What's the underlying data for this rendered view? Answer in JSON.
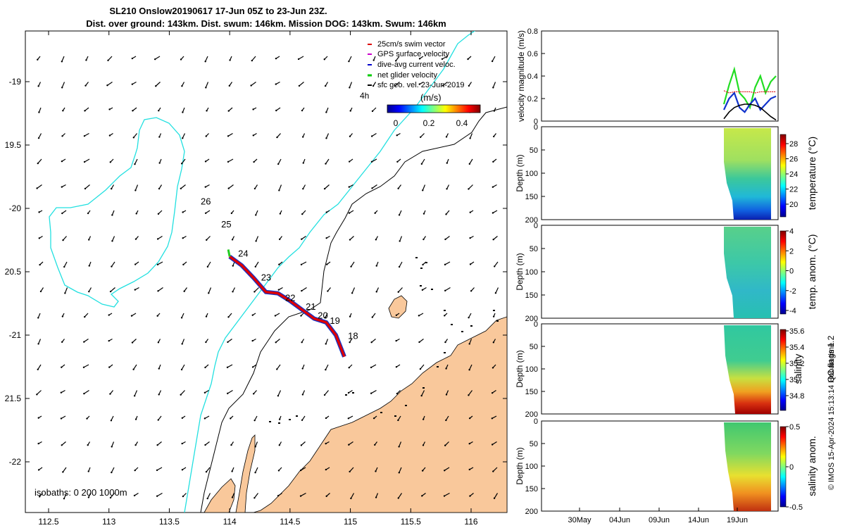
{
  "title": {
    "line1": "SL210 Onslow20190617 17-Jun 05Z to 23-Jun 23Z.",
    "line2": "Dist. over ground: 143km. Dist. swum: 146km. Mission DOG: 143km. Swum: 146km"
  },
  "map": {
    "legend": [
      {
        "label": "25cm/s swim vector",
        "color": "#dd0000"
      },
      {
        "label": "GPS surface velocity",
        "color": "#cc00cc"
      },
      {
        "label": "dive-avg current veloc.",
        "color": "#0000cc"
      },
      {
        "label": "net glider velocity",
        "color": "#00cc00"
      },
      {
        "label": "sfc geo. vel. 23-Jun-2019",
        "color": "#000000"
      }
    ],
    "time_note": "4h",
    "colorbar": {
      "unit": "(m/s)",
      "ticks": [
        "0",
        "0.2",
        "0.4"
      ]
    },
    "isobaths_label": "isobaths: 0   200  1000m",
    "day_labels": [
      {
        "text": "26",
        "lon": 113.76,
        "lat": -19.97
      },
      {
        "text": "25",
        "lon": 113.93,
        "lat": -20.15
      },
      {
        "text": "24",
        "lon": 114.07,
        "lat": -20.38
      },
      {
        "text": "23",
        "lon": 114.26,
        "lat": -20.57
      },
      {
        "text": "22",
        "lon": 114.46,
        "lat": -20.73
      },
      {
        "text": "21",
        "lon": 114.63,
        "lat": -20.8
      },
      {
        "text": "20",
        "lon": 114.73,
        "lat": -20.87
      },
      {
        "text": "19",
        "lon": 114.83,
        "lat": -20.91
      },
      {
        "text": "18",
        "lon": 114.98,
        "lat": -21.03
      }
    ],
    "xticks": [
      112.5,
      113,
      113.5,
      114,
      114.5,
      115,
      115.5,
      116
    ],
    "xtick_labels": [
      "112.5",
      "113",
      "113.5",
      "114",
      "114.5",
      "115",
      "115.5",
      "116"
    ],
    "yticks": [
      -19,
      -19.5,
      -20,
      -20.5,
      -21,
      -21.5,
      -22
    ],
    "ytick_labels": [
      "-19",
      "19.5",
      "-20",
      "20.5",
      "-21",
      "21.5",
      "-22"
    ]
  },
  "panels": {
    "velocity": {
      "ylabel": "velocity magnitude (m/s)",
      "yticks": [
        "0",
        "0.2",
        "0.4",
        "0.6",
        "0.8"
      ]
    },
    "temperature": {
      "label": "temperature (°C)",
      "ylabel": "Depth (m)",
      "yticks": [
        "0",
        "50",
        "100",
        "150",
        "200"
      ],
      "cticks": [
        "28",
        "26",
        "24",
        "22",
        "20"
      ]
    },
    "temp_anom": {
      "label": "temp. anom. (°C)",
      "ylabel": "Depth (m)",
      "yticks": [
        "0",
        "50",
        "100",
        "150",
        "200"
      ],
      "cticks": [
        "4",
        "2",
        "0",
        "-2",
        "-4"
      ]
    },
    "salinity": {
      "label": "salinity",
      "ylabel": "Depth (m)",
      "yticks": [
        "0",
        "50",
        "100",
        "150",
        "200"
      ],
      "cticks": [
        "35.6",
        "35.4",
        "35.2",
        "35",
        "34.8"
      ]
    },
    "salinity_anom": {
      "label": "salinity anom.",
      "ylabel": "Depth (m)",
      "yticks": [
        "0",
        "50",
        "100",
        "150",
        "200"
      ],
      "cticks": [
        "0.5",
        "0",
        "-0.5"
      ]
    },
    "time_ticks": [
      "30May",
      "04Jun",
      "09Jun",
      "14Jun",
      "19Jun"
    ]
  },
  "footer": {
    "qc": "QC flags 1  2",
    "credit": "© IMOS 15-Apr-2024 15:13:14 Hobart time."
  },
  "colors": {
    "land": "#f9c89b",
    "coast_cyan": "#22e0e0",
    "track_red": "#dd0000",
    "track_blue": "#1133cc",
    "track_green": "#22cc22"
  },
  "chart_data": [
    {
      "type": "scatter",
      "title": "SL210 Onslow20190617 17-Jun 05Z to 23-Jun 23Z.",
      "xlim": [
        112.3,
        116.3
      ],
      "ylim": [
        -22.4,
        -18.6
      ],
      "track": {
        "x": [
          114.0,
          114.1,
          114.2,
          114.3,
          114.4,
          114.5,
          114.6,
          114.7,
          114.8,
          114.88,
          114.95
        ],
        "y": [
          -20.38,
          -20.45,
          -20.55,
          -20.66,
          -20.67,
          -20.73,
          -20.8,
          -20.87,
          -20.9,
          -21.0,
          -21.17
        ]
      }
    },
    {
      "type": "line",
      "ylabel": "velocity magnitude (m/s)",
      "ylim": [
        0,
        0.8
      ],
      "x_ticks": [
        "30May",
        "04Jun",
        "09Jun",
        "14Jun",
        "19Jun"
      ],
      "series": [
        {
          "values": [
            0.15,
            0.32,
            0.46,
            0.25,
            0.2,
            0.12,
            0.3,
            0.4,
            0.25,
            0.35,
            0.4
          ]
        },
        {
          "values": [
            0.1,
            0.2,
            0.25,
            0.12,
            0.08,
            0.15,
            0.2,
            0.1,
            0.15,
            0.2,
            0.22
          ]
        },
        {
          "values": [
            0.27,
            0.25,
            0.26,
            0.26,
            0.26,
            0.26,
            0.25,
            0.26,
            0.26,
            0.26,
            0.26
          ]
        },
        {
          "values": [
            0.02,
            0.08,
            0.12,
            0.14,
            0.15,
            0.15,
            0.14,
            0.12,
            0.08,
            0.04,
            0.01
          ]
        }
      ]
    }
  ]
}
